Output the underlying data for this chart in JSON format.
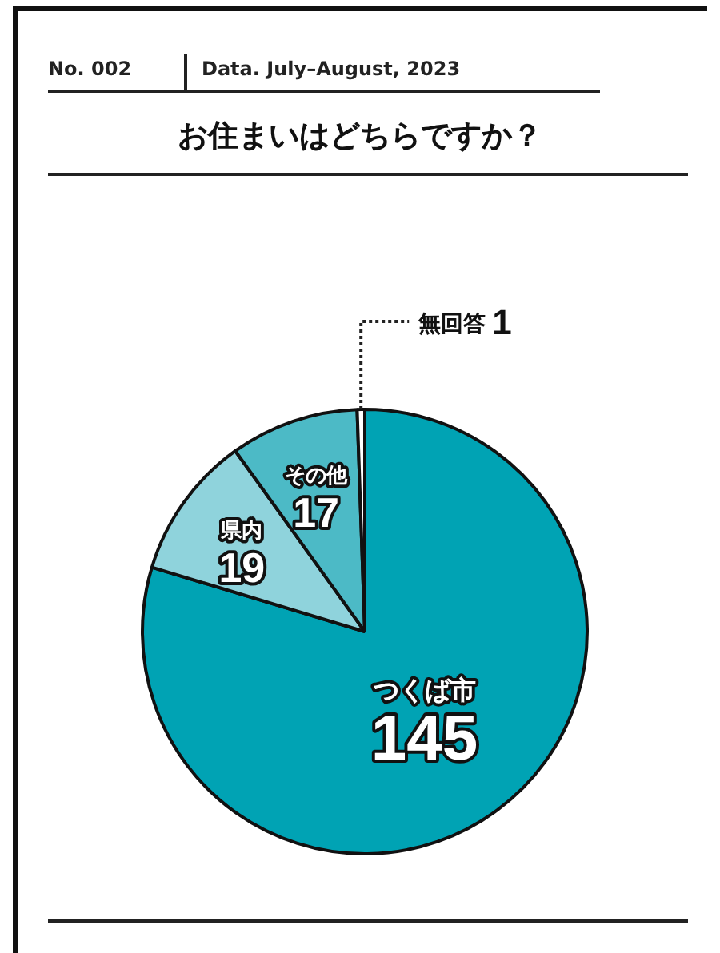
{
  "chart_data": {
    "type": "pie",
    "title": "お住まいはどちらですか？",
    "annotations": [
      "No. 002",
      "Data. July–August, 2023"
    ],
    "categories": [
      "つくば市",
      "県内",
      "その他",
      "無回答"
    ],
    "values": [
      145,
      19,
      17,
      1
    ],
    "colors": [
      "#00a3b4",
      "#8fd3dc",
      "#4cbac6",
      "#ffffff"
    ],
    "data_labels": true,
    "legend": false
  }
}
